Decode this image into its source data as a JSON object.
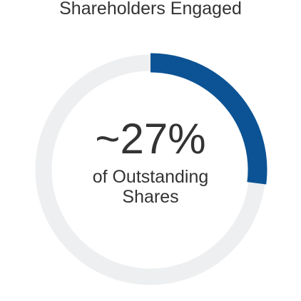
{
  "chart_data": {
    "type": "donut",
    "title": "Shareholders Engaged",
    "values": [
      27
    ],
    "value_labels": [
      "~27%"
    ],
    "color": "#0b5394",
    "track_color": "#eeeff0",
    "center_text": [
      "of Outstanding",
      "Shares"
    ]
  }
}
